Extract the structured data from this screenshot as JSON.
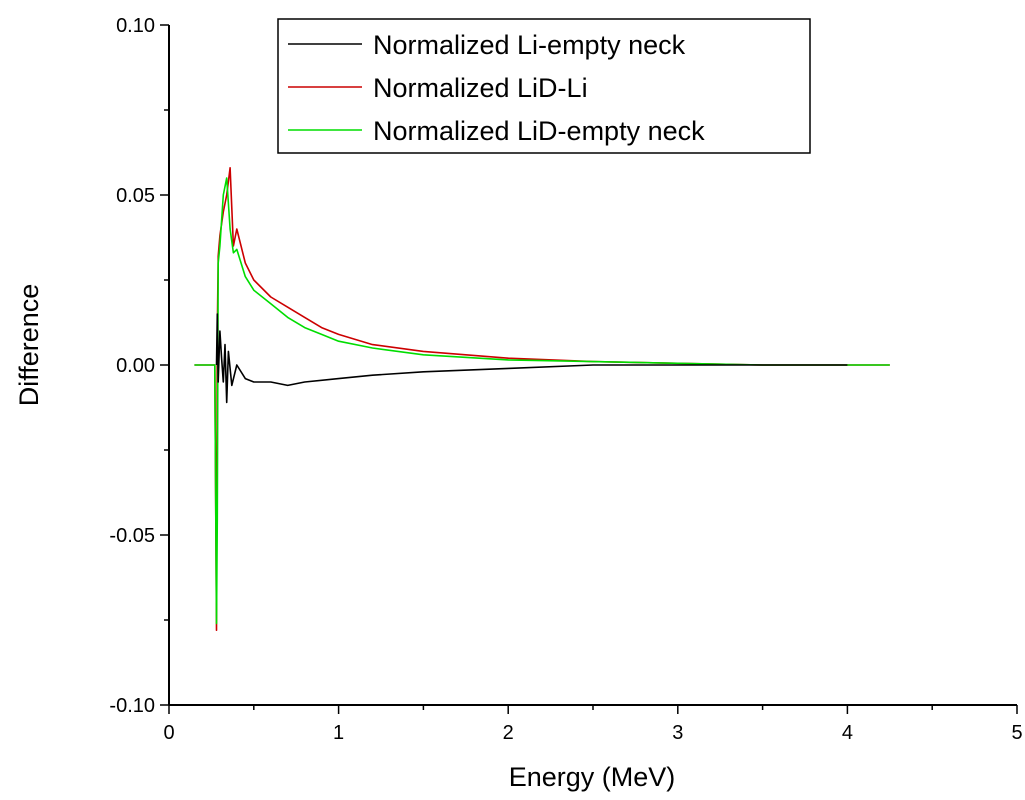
{
  "chart_data": {
    "type": "line",
    "title": "",
    "xlabel": "Energy (MeV)",
    "ylabel": "Difference",
    "xlim": [
      0,
      5
    ],
    "ylim": [
      -0.1,
      0.1
    ],
    "x_ticks": [
      0,
      1,
      2,
      3,
      4,
      5
    ],
    "x_tick_labels": [
      "0",
      "1",
      "2",
      "3",
      "4",
      "5"
    ],
    "y_ticks": [
      -0.1,
      -0.05,
      0.0,
      0.05,
      0.1
    ],
    "y_tick_labels": [
      "-0.10",
      "-0.05",
      "0.00",
      "0.05",
      "0.10"
    ],
    "grid": false,
    "legend": "top-center",
    "series": [
      {
        "name": "Normalized Li-empty neck",
        "color": "#000000",
        "x": [
          0.28,
          0.285,
          0.29,
          0.3,
          0.31,
          0.32,
          0.33,
          0.34,
          0.35,
          0.37,
          0.4,
          0.45,
          0.5,
          0.6,
          0.7,
          0.8,
          1.0,
          1.2,
          1.5,
          2.0,
          2.5,
          3.0,
          4.0
        ],
        "y": [
          0.0,
          0.015,
          -0.005,
          0.01,
          0.002,
          -0.005,
          0.006,
          -0.011,
          0.004,
          -0.006,
          0.0,
          -0.004,
          -0.005,
          -0.005,
          -0.006,
          -0.005,
          -0.004,
          -0.003,
          -0.002,
          -0.001,
          0.0,
          0.0,
          0.0
        ]
      },
      {
        "name": "Normalized LiD-Li",
        "color": "#cc0000",
        "x": [
          0.15,
          0.27,
          0.28,
          0.285,
          0.29,
          0.3,
          0.32,
          0.34,
          0.36,
          0.38,
          0.4,
          0.45,
          0.5,
          0.6,
          0.7,
          0.8,
          0.9,
          1.0,
          1.2,
          1.5,
          2.0,
          2.5,
          3.0,
          3.5,
          4.0,
          4.25
        ],
        "y": [
          0.0,
          0.0,
          -0.078,
          0.01,
          0.032,
          0.038,
          0.045,
          0.05,
          0.058,
          0.035,
          0.04,
          0.03,
          0.025,
          0.02,
          0.017,
          0.014,
          0.011,
          0.009,
          0.006,
          0.004,
          0.002,
          0.001,
          0.0005,
          0.0,
          0.0,
          0.0
        ]
      },
      {
        "name": "Normalized LiD-empty neck",
        "color": "#00dd00",
        "x": [
          0.15,
          0.27,
          0.28,
          0.285,
          0.29,
          0.3,
          0.32,
          0.34,
          0.36,
          0.38,
          0.4,
          0.45,
          0.5,
          0.6,
          0.7,
          0.8,
          0.9,
          1.0,
          1.2,
          1.5,
          2.0,
          2.5,
          3.0,
          3.5,
          4.0,
          4.25
        ],
        "y": [
          0.0,
          0.0,
          -0.076,
          -0.045,
          0.03,
          0.035,
          0.05,
          0.055,
          0.04,
          0.033,
          0.034,
          0.026,
          0.022,
          0.018,
          0.014,
          0.011,
          0.009,
          0.007,
          0.005,
          0.003,
          0.0015,
          0.001,
          0.0005,
          0.0,
          0.0,
          0.0
        ]
      }
    ]
  }
}
